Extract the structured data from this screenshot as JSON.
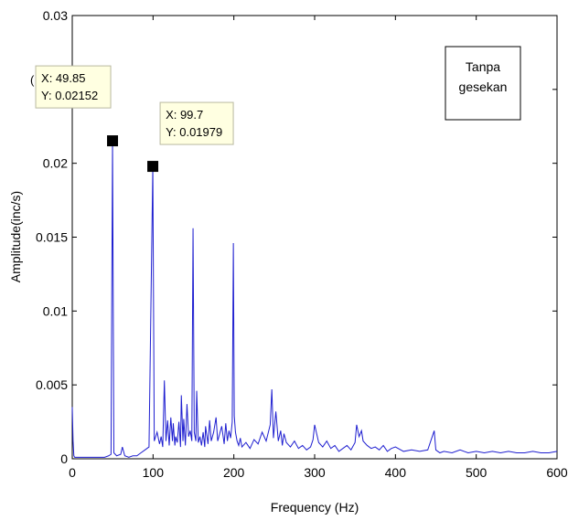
{
  "chart_data": {
    "type": "line",
    "title": "",
    "xlabel": "Frequency (Hz)",
    "ylabel": "Amplitude(inc/s)",
    "xlim": [
      0,
      600
    ],
    "ylim": [
      0,
      0.03
    ],
    "xticks": [
      0,
      100,
      200,
      300,
      400,
      500,
      600
    ],
    "xtick_labels": [
      "0",
      "100",
      "200",
      "300",
      "400",
      "500",
      "600"
    ],
    "yticks": [
      0,
      0.005,
      0.01,
      0.015,
      0.02,
      0.025,
      0.03
    ],
    "ytick_labels": [
      "0",
      "0.005",
      "0.01",
      "0.015",
      "0.02",
      "0.025",
      "0.03"
    ],
    "grid": false,
    "line_color": "#1f1fd0",
    "series": [
      {
        "x": [
          0,
          1,
          2,
          3,
          5,
          10,
          20,
          30,
          40,
          45,
          48,
          49.85,
          51.5,
          55,
          60,
          62,
          65,
          70,
          75,
          80,
          85,
          90,
          95,
          99.7,
          101.5,
          105,
          108,
          110,
          112,
          114,
          116,
          118,
          120,
          122,
          124,
          125,
          127,
          128,
          130,
          132,
          134,
          135,
          137,
          138,
          140,
          142,
          144,
          146,
          148,
          149.5,
          151,
          153,
          154,
          156,
          158,
          160,
          162,
          164,
          165,
          168,
          170,
          172,
          175,
          178,
          180,
          182,
          185,
          188,
          190,
          192,
          194,
          196,
          198,
          199.4,
          200.5,
          202,
          204,
          206,
          208,
          210,
          215,
          220,
          225,
          230,
          235,
          240,
          245,
          247,
          249,
          252,
          255,
          258,
          260,
          262,
          265,
          270,
          275,
          280,
          285,
          290,
          295,
          298,
          300,
          305,
          310,
          315,
          320,
          325,
          330,
          335,
          340,
          345,
          350,
          352,
          355,
          358,
          360,
          365,
          370,
          375,
          380,
          385,
          390,
          395,
          400,
          410,
          420,
          430,
          440,
          448,
          450,
          455,
          460,
          470,
          480,
          490,
          500,
          510,
          520,
          530,
          540,
          550,
          560,
          570,
          580,
          590,
          600
        ],
        "y": [
          0.0035,
          0.0012,
          0.0002,
          0.0001,
          0.0001,
          0.0001,
          0.0001,
          0.0001,
          0.0001,
          0.0002,
          0.0003,
          0.02152,
          0.0004,
          0.0002,
          0.0003,
          0.0008,
          0.0002,
          0.0001,
          0.0002,
          0.0002,
          0.0004,
          0.0006,
          0.0008,
          0.01979,
          0.0012,
          0.0018,
          0.001,
          0.0015,
          0.0008,
          0.0053,
          0.0012,
          0.0026,
          0.0009,
          0.0028,
          0.0012,
          0.0024,
          0.0009,
          0.0015,
          0.0011,
          0.0025,
          0.0008,
          0.0043,
          0.0012,
          0.0027,
          0.0009,
          0.0037,
          0.0015,
          0.0019,
          0.0012,
          0.0156,
          0.0018,
          0.0012,
          0.0046,
          0.0011,
          0.0015,
          0.0009,
          0.0018,
          0.0008,
          0.0022,
          0.001,
          0.0026,
          0.0012,
          0.0018,
          0.0028,
          0.0012,
          0.0016,
          0.0022,
          0.001,
          0.0024,
          0.0012,
          0.0019,
          0.0014,
          0.0025,
          0.0146,
          0.0029,
          0.0018,
          0.0012,
          0.0009,
          0.0014,
          0.0008,
          0.0011,
          0.0007,
          0.0013,
          0.001,
          0.0018,
          0.0012,
          0.0023,
          0.0047,
          0.0014,
          0.0032,
          0.0012,
          0.0019,
          0.0009,
          0.0017,
          0.0011,
          0.0008,
          0.0012,
          0.0007,
          0.0009,
          0.0006,
          0.0008,
          0.0013,
          0.0023,
          0.0011,
          0.0008,
          0.0012,
          0.0007,
          0.0009,
          0.0005,
          0.0007,
          0.0009,
          0.0006,
          0.0011,
          0.0023,
          0.0015,
          0.0019,
          0.0012,
          0.0009,
          0.0007,
          0.0008,
          0.0006,
          0.0009,
          0.0005,
          0.0007,
          0.0008,
          0.0005,
          0.0006,
          0.0005,
          0.0006,
          0.0019,
          0.0006,
          0.0004,
          0.0005,
          0.0004,
          0.0006,
          0.0004,
          0.0005,
          0.0004,
          0.0005,
          0.0004,
          0.0005,
          0.0004,
          0.0004,
          0.0005,
          0.0004,
          0.0004,
          0.0005
        ]
      }
    ],
    "datatips": [
      {
        "x": 49.85,
        "y": 0.02152,
        "label_x": "X: 49.85",
        "label_y": "Y: 0.02152",
        "lead": "("
      },
      {
        "x": 99.7,
        "y": 0.01979,
        "label_x": "X: 99.7",
        "label_y": "Y: 0.01979",
        "lead": ""
      }
    ],
    "legend": {
      "lines": [
        "Tanpa",
        "gesekan"
      ],
      "placement": "top-right"
    }
  }
}
